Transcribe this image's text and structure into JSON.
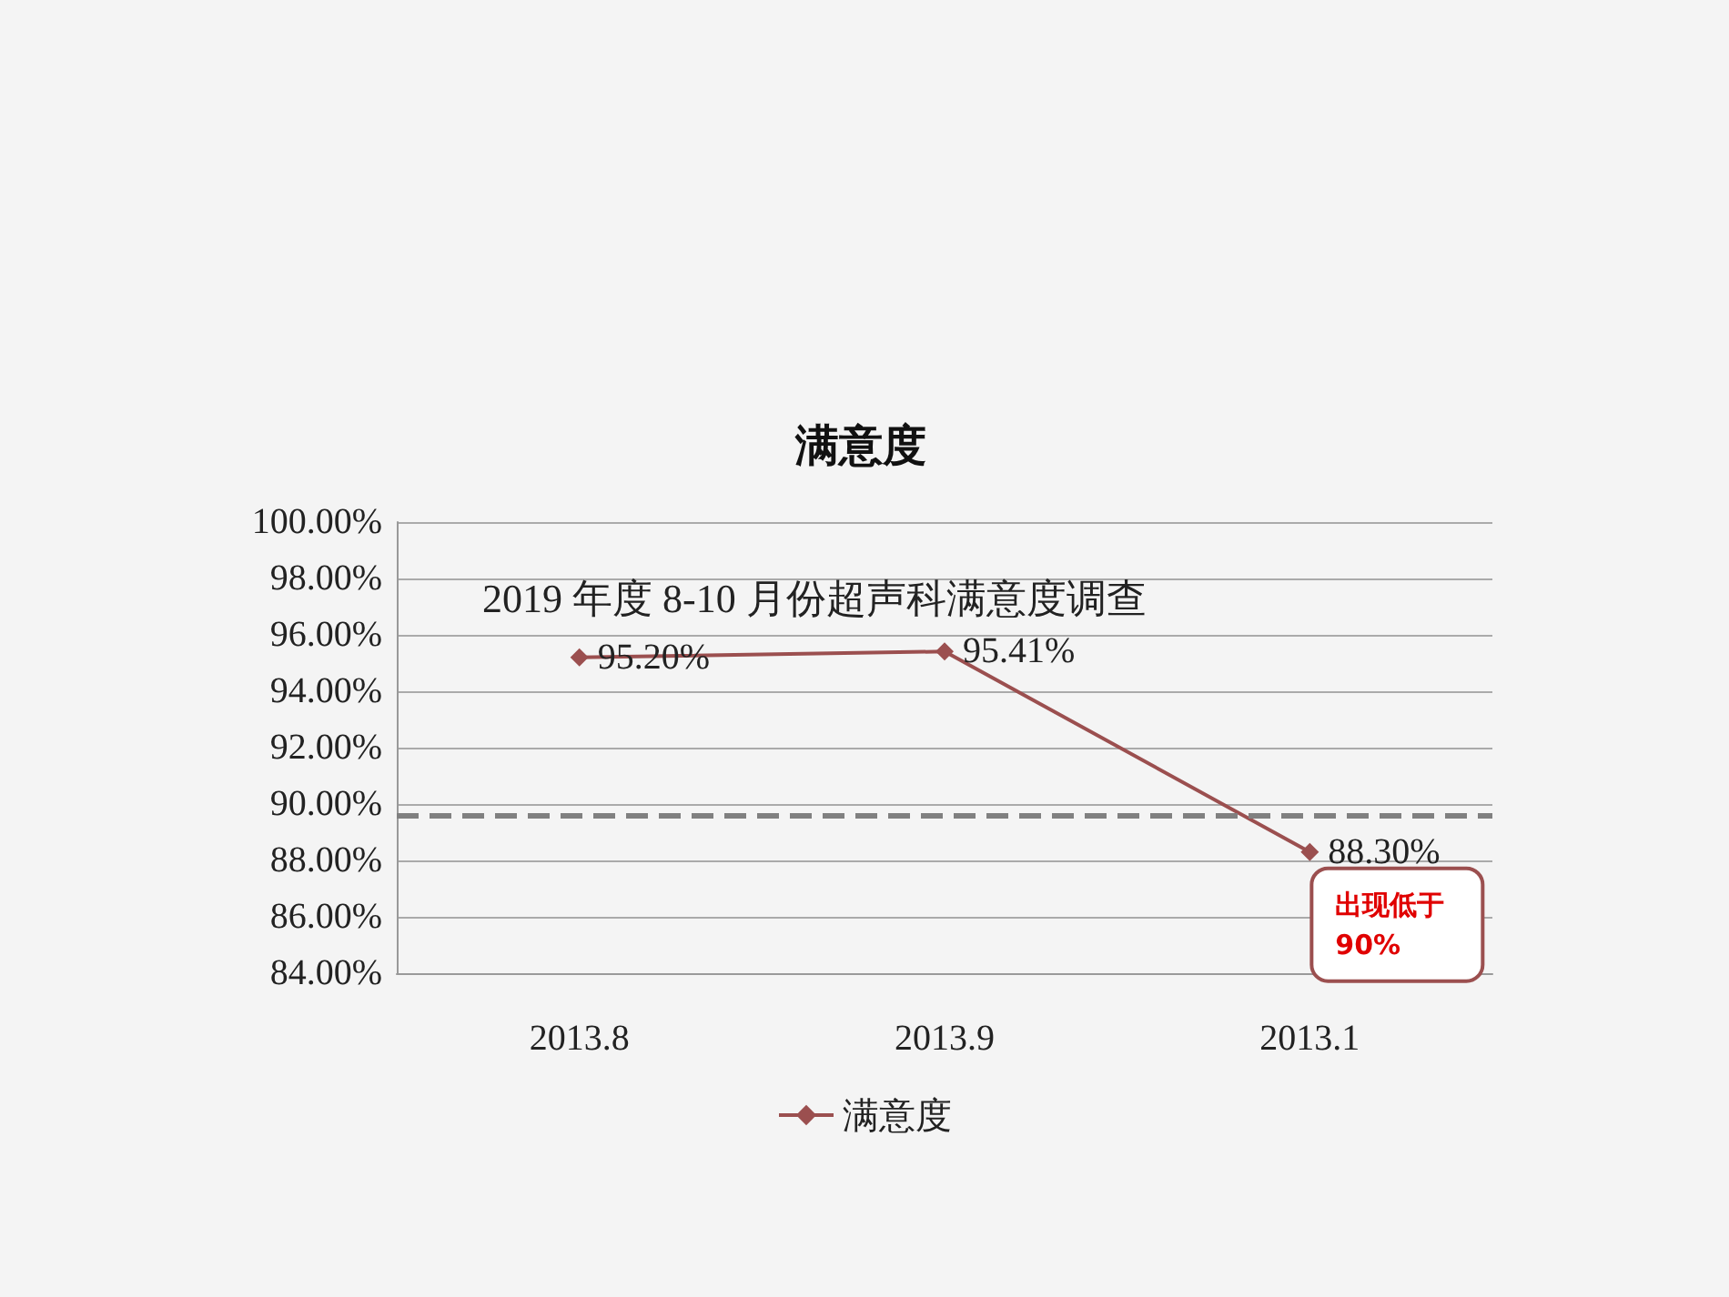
{
  "chart_data": {
    "type": "line",
    "title": "满意度",
    "categories": [
      "2013.8",
      "2013.9",
      "2013.1"
    ],
    "series": [
      {
        "name": "满意度",
        "color": "#9b4f4f",
        "values": [
          95.2,
          95.41,
          88.3
        ],
        "value_labels": [
          "95.20%",
          "95.41%",
          "88.30%"
        ]
      }
    ],
    "ylim": [
      84,
      100
    ],
    "yticks": [
      {
        "value": 84,
        "label": "84.00%"
      },
      {
        "value": 86,
        "label": "86.00%"
      },
      {
        "value": 88,
        "label": "88.00%"
      },
      {
        "value": 90,
        "label": "90.00%"
      },
      {
        "value": 92,
        "label": "92.00%"
      },
      {
        "value": 94,
        "label": "94.00%"
      },
      {
        "value": 96,
        "label": "96.00%"
      },
      {
        "value": 98,
        "label": "98.00%"
      },
      {
        "value": 100,
        "label": "100.00%"
      }
    ],
    "ref_lines": [
      {
        "axis": "y",
        "value": 89.6,
        "color": "#808080",
        "line_style": "dashed"
      }
    ],
    "annotations": [
      "2019 年度 8-10 月份超声科满意度调查",
      {
        "text": "出现低于90%",
        "x": "2013.1",
        "y": 88.3
      }
    ],
    "grid": "y",
    "legend": "bottom",
    "marker": "diamond",
    "line_style": "solid"
  }
}
